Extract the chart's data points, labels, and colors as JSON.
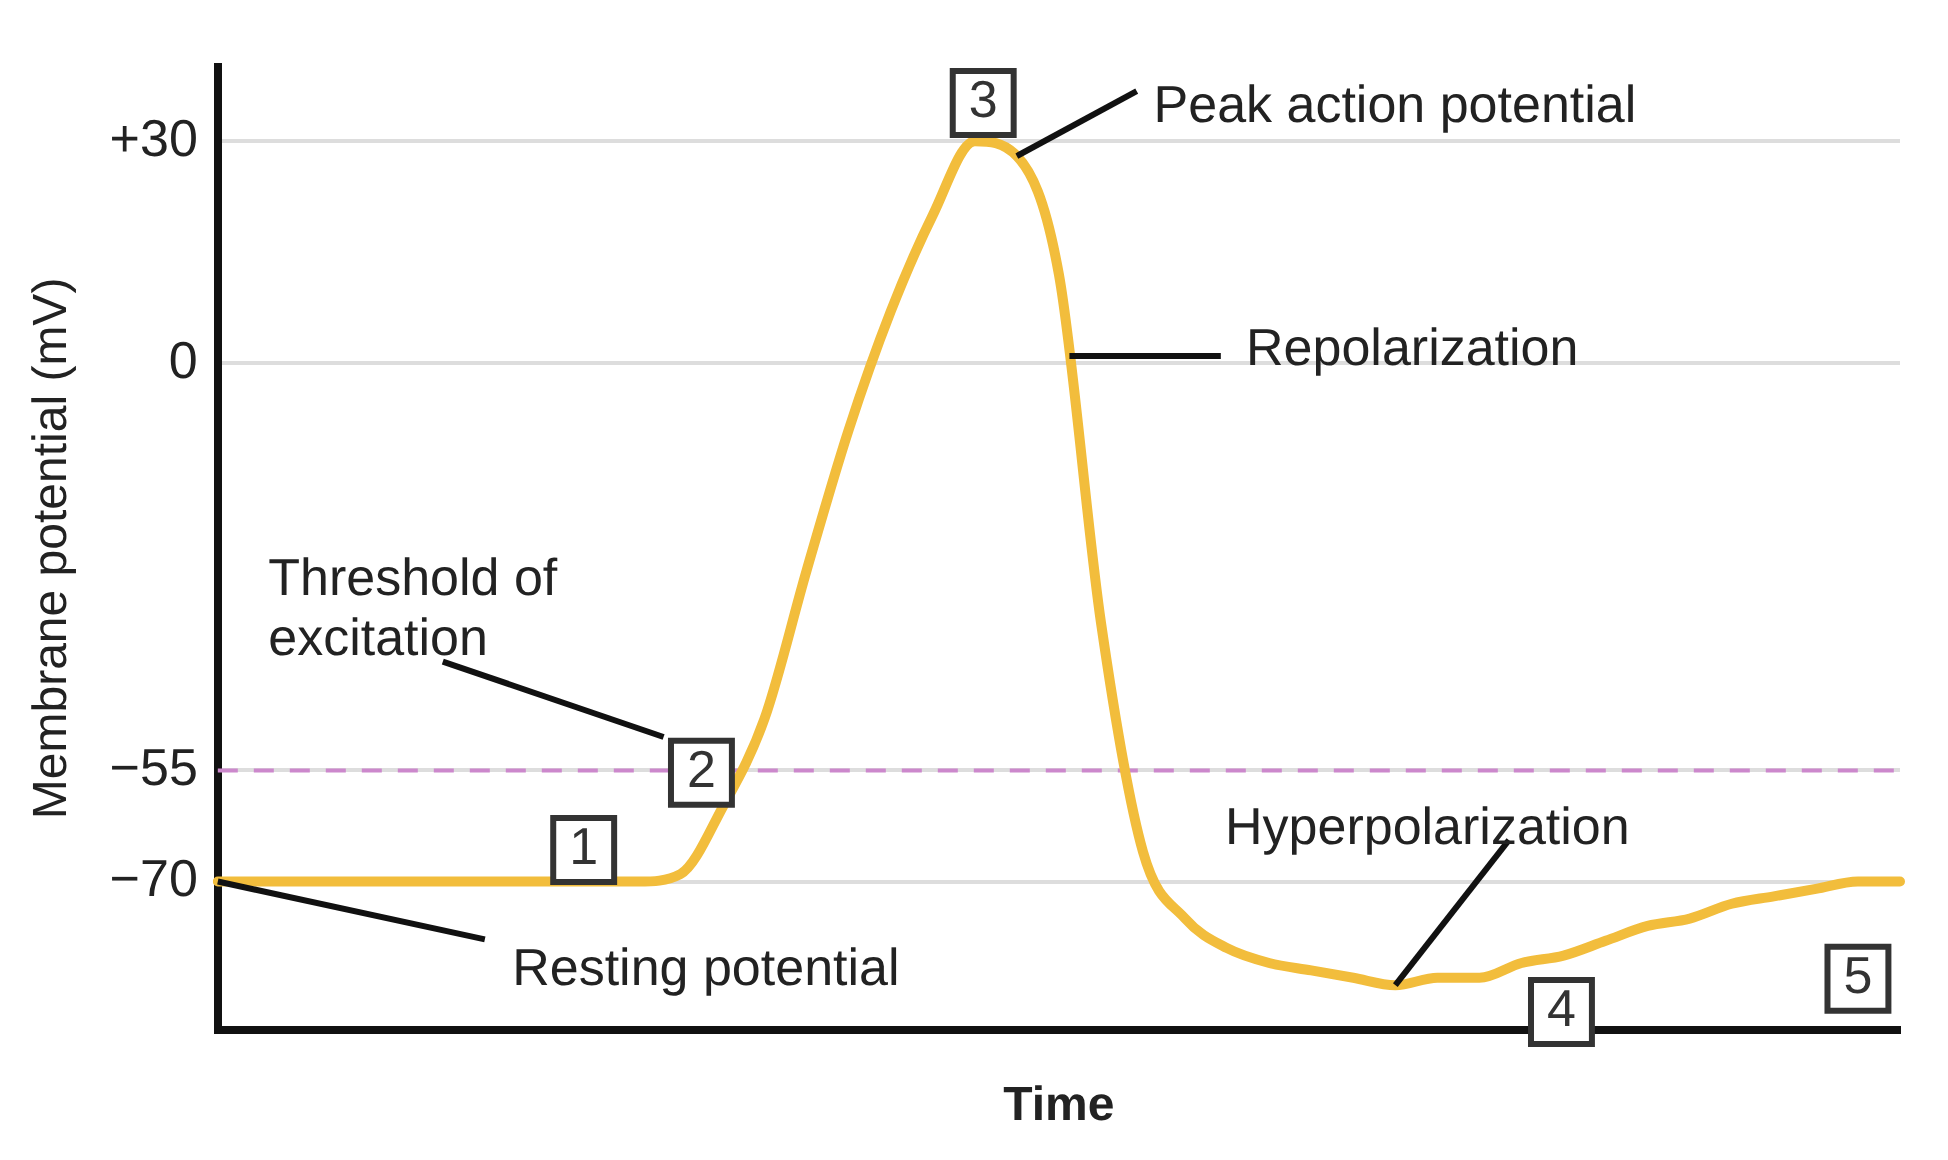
{
  "chart_data": {
    "type": "line",
    "xlabel": "Time",
    "ylabel": "Membrane potential (mV)",
    "categories": [
      null,
      null,
      null,
      null,
      null,
      null,
      null,
      null,
      null,
      null,
      null,
      null,
      null,
      null,
      null,
      null,
      null,
      null,
      null,
      null,
      null,
      null,
      null,
      null,
      null,
      null,
      null,
      null,
      null,
      null,
      null,
      null,
      null,
      null,
      null,
      null,
      null,
      null,
      null,
      null,
      null
    ],
    "series": [
      {
        "color": "#f2bd3c",
        "values": [
          -70,
          -70,
          -70,
          -70,
          -70,
          -70,
          -70,
          -70,
          -70,
          -70,
          -70,
          -69,
          -60,
          -48,
          -28,
          -9,
          7,
          20,
          30,
          28,
          12,
          -35,
          -66,
          -75,
          -79,
          -81,
          -82,
          -83,
          -84,
          -83,
          -83,
          -81,
          -80,
          -78,
          -76,
          -75,
          -73,
          -72,
          -71,
          -70,
          -70
        ]
      }
    ],
    "ylim": [
      -90,
      40
    ],
    "yticks": [
      {
        "value": 30,
        "label": "+30"
      },
      0,
      {
        "value": -55,
        "label": "−55"
      },
      {
        "value": -70,
        "label": "−70"
      }
    ],
    "grid": "y",
    "legend": false,
    "marker": "none",
    "line_style": "solid",
    "ref_lines": [
      {
        "axis": "y",
        "value": -55,
        "color": "#cc88cc",
        "line_style": "dashed"
      }
    ],
    "annotations": [
      "1",
      "2",
      "3",
      "4",
      "5",
      "Threshold of excitation",
      "Peak action potential",
      "Repolarization",
      "Hyperpolarization",
      "Resting potential"
    ]
  }
}
